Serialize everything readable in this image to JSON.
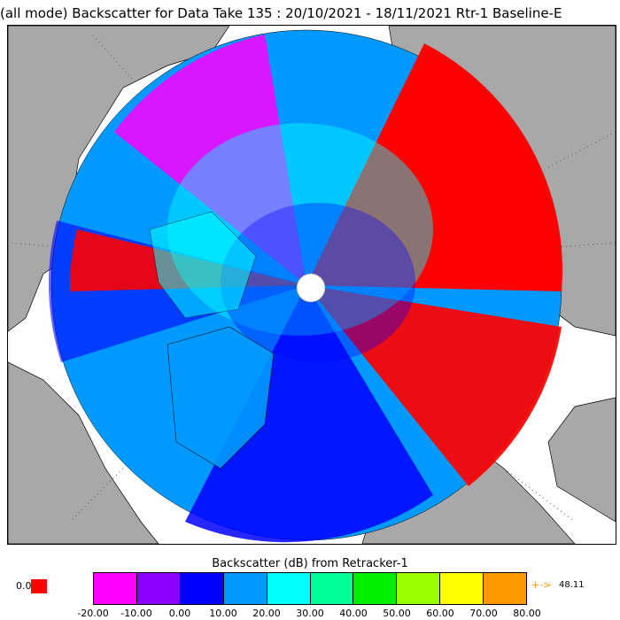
{
  "title": "(all mode) Backscatter for Data Take 135 : 20/10/2021 - 18/11/2021 Rtr-1 Baseline-E",
  "colorbar": {
    "title": "Backscatter (dB) from Retracker-1",
    "tick_labels": [
      "-20.00",
      "-10.00",
      "0.00",
      "10.00",
      "20.00",
      "30.00",
      "40.00",
      "50.00",
      "60.00",
      "70.00",
      "80.00"
    ],
    "colors": [
      "#ff00ff",
      "#8a00ff",
      "#0000ff",
      "#0099ff",
      "#00ffff",
      "#00ff99",
      "#00ee00",
      "#99ff00",
      "#ffff00",
      "#ff9900"
    ],
    "under_label": "0.0",
    "under_color": "#ff0000",
    "over_arrow": "+->",
    "over_value": "48.11",
    "over_color": "#ff9900"
  },
  "map_colors": {
    "land": "#a8a8a8",
    "ocean": "#ffffff",
    "dominant": [
      "#0099ff",
      "#00ffff",
      "#0000ff",
      "#ff0000",
      "#ff00ff"
    ]
  }
}
